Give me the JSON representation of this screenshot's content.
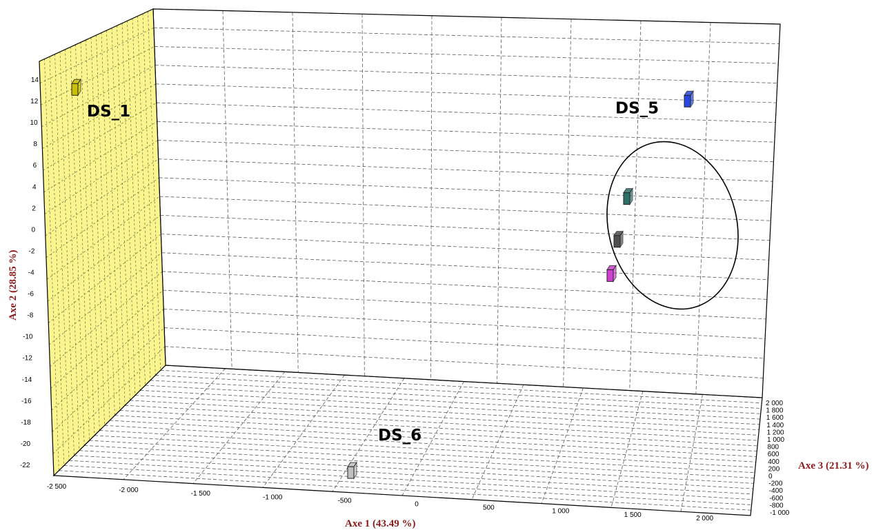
{
  "chart_data": {
    "type": "scatter",
    "projection": "3d",
    "axes": {
      "x": {
        "label": "Axe 1 (43.49 %)",
        "ticks": [
          "-2 500",
          "-2 000",
          "-1 500",
          "-1 000",
          "-500",
          "0",
          "500",
          "1 000",
          "1 500",
          "2 000"
        ],
        "range": [
          -2500,
          2200
        ]
      },
      "y": {
        "label": "Axe 2 (28.85 %)",
        "ticks": [
          "14",
          "12",
          "10",
          "8",
          "6",
          "4",
          "2",
          "0",
          "-2",
          "-4",
          "-6",
          "-8",
          "-10",
          "-12",
          "-14",
          "-16",
          "-18",
          "-20",
          "-22"
        ],
        "range": [
          -23,
          15
        ]
      },
      "z": {
        "label": "Axe 3 (21.31 %)",
        "ticks": [
          "2 000",
          "1 800",
          "1 600",
          "1 400",
          "1 200",
          "1 000",
          "800",
          "600",
          "400",
          "200",
          "0",
          "-200",
          "-400",
          "-600",
          "-800",
          "-1 000"
        ],
        "range": [
          -1000,
          2000
        ]
      }
    },
    "series": [
      {
        "name": "DS_1",
        "label": "DS_1",
        "color": "#c8c000",
        "x": -2380,
        "y": 13.6,
        "z": 0
      },
      {
        "name": "DS_5",
        "label": "DS_5",
        "color": "#2848e0",
        "x": 2060,
        "y": 12.5,
        "z": 0
      },
      {
        "color": "#2f6f6a",
        "x": 1620,
        "y": 3.4,
        "z": 0
      },
      {
        "color": "#505050",
        "x": 1550,
        "y": -0.6,
        "z": 0
      },
      {
        "color": "#d040d0",
        "x": 1500,
        "y": -3.8,
        "z": 0
      },
      {
        "name": "DS_6",
        "label": "DS_6",
        "color": "#c0c0c0",
        "x": -380,
        "y": -22.2,
        "z": 0
      }
    ],
    "annotations": [
      "ellipse around the three middle points"
    ],
    "grid": true,
    "colors": {
      "left_wall": "#fbf58f",
      "axis_title": "#8b1a1a"
    }
  }
}
